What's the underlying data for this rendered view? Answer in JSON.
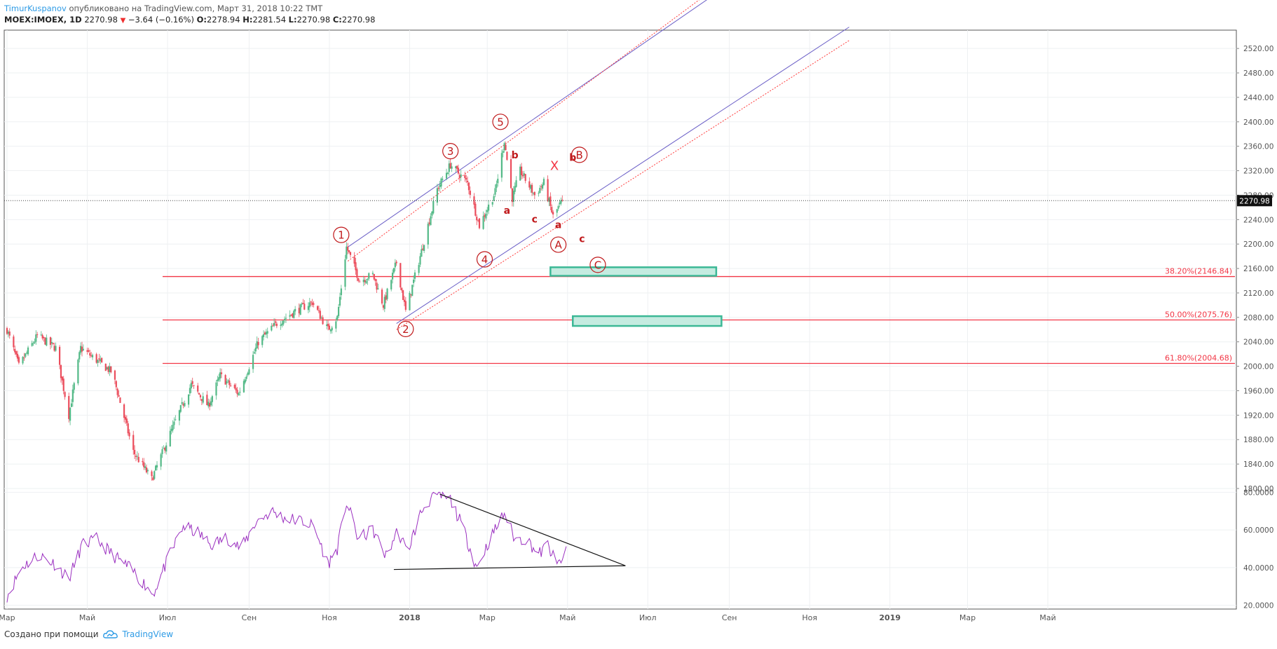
{
  "header": {
    "author": "TimurKuspanov",
    "published": "опубликовано на TradingView.com, Март 31, 2018 10:22 ТМТ",
    "symbol": "MOEX:IMOEX, 1D",
    "last": "2270.98",
    "change_arrow": "▼",
    "change": "−3.64 (−0.16%)",
    "o_label": "O:",
    "o_value": "2278.94",
    "h_label": "H:",
    "h_value": "2281.54",
    "l_label": "L:",
    "l_value": "2270.98",
    "c_label": "C:",
    "c_value": "2270.98"
  },
  "footer": {
    "created_with": "Создано при помощи",
    "brand": "TradingView",
    "brand_icon": "tradingview-cloud-icon"
  },
  "colors": {
    "up": "#53b987",
    "down": "#eb4d5c",
    "channel": "#6b5fc7",
    "channel_outer": "#ff3b3b",
    "fib": "#f23645",
    "rsi": "#9b30c0",
    "zone_fill": "#c5ebe0",
    "zone_stroke": "#3cb896",
    "wave": "#c0191b"
  },
  "chart_data": [
    {
      "type": "candlestick",
      "price_axis": {
        "ticks": [
          2520,
          2480,
          2440,
          2400,
          2360,
          2320,
          2280,
          2240,
          2200,
          2160,
          2120,
          2080,
          2040,
          2000,
          1960,
          1920,
          1880,
          1840,
          1800
        ],
        "labels": [
          "2520.00",
          "2480.00",
          "2440.00",
          "2400.00",
          "2360.00",
          "2320.00",
          "2280.00",
          "2240.00",
          "2200.00",
          "2160.00",
          "2120.00",
          "2080.00",
          "2040.00",
          "2000.00",
          "1960.00",
          "1920.00",
          "1880.00",
          "1840.00",
          "1800.00"
        ],
        "range": [
          1800,
          2550
        ],
        "last_price": 2270.98,
        "last_label": "2270.98"
      },
      "time_axis": {
        "labels": [
          "Мар",
          "Май",
          "Июл",
          "Сен",
          "Ноя",
          "2018",
          "Мар",
          "Май",
          "Июл",
          "Сен",
          "Ноя",
          "2019",
          "Мар",
          "Май"
        ],
        "label_dates": [
          "2017-03-01",
          "2017-05-01",
          "2017-07-01",
          "2017-09-01",
          "2017-11-01",
          "2018-01-01",
          "2018-03-01",
          "2018-05-01",
          "2018-07-01",
          "2018-09-01",
          "2018-11-01",
          "2019-01-01",
          "2019-03-01",
          "2019-05-01"
        ],
        "bold": [
          "2018",
          "2019"
        ]
      },
      "anchors": [
        {
          "d": "2017-03-01",
          "p": 2060
        },
        {
          "d": "2017-03-10",
          "p": 2000
        },
        {
          "d": "2017-03-24",
          "p": 2050
        },
        {
          "d": "2017-04-07",
          "p": 2030
        },
        {
          "d": "2017-04-17",
          "p": 1920
        },
        {
          "d": "2017-04-26",
          "p": 2030
        },
        {
          "d": "2017-05-08",
          "p": 2010
        },
        {
          "d": "2017-05-20",
          "p": 1990
        },
        {
          "d": "2017-06-05",
          "p": 1860
        },
        {
          "d": "2017-06-19",
          "p": 1815
        },
        {
          "d": "2017-07-03",
          "p": 1890
        },
        {
          "d": "2017-07-19",
          "p": 1970
        },
        {
          "d": "2017-08-01",
          "p": 1935
        },
        {
          "d": "2017-08-10",
          "p": 1985
        },
        {
          "d": "2017-08-24",
          "p": 1955
        },
        {
          "d": "2017-09-08",
          "p": 2040
        },
        {
          "d": "2017-09-22",
          "p": 2070
        },
        {
          "d": "2017-10-06",
          "p": 2090
        },
        {
          "d": "2017-10-19",
          "p": 2105
        },
        {
          "d": "2017-10-31",
          "p": 2060
        },
        {
          "d": "2017-11-07",
          "p": 2080
        },
        {
          "d": "2017-11-14",
          "p": 2195
        },
        {
          "d": "2017-11-24",
          "p": 2140
        },
        {
          "d": "2017-12-04",
          "p": 2150
        },
        {
          "d": "2017-12-12",
          "p": 2100
        },
        {
          "d": "2017-12-22",
          "p": 2170
        },
        {
          "d": "2017-12-29",
          "p": 2090
        },
        {
          "d": "2018-01-09",
          "p": 2180
        },
        {
          "d": "2018-01-22",
          "p": 2290
        },
        {
          "d": "2018-02-01",
          "p": 2330
        },
        {
          "d": "2018-02-14",
          "p": 2300
        },
        {
          "d": "2018-02-23",
          "p": 2230
        },
        {
          "d": "2018-03-07",
          "p": 2285
        },
        {
          "d": "2018-03-14",
          "p": 2370
        },
        {
          "d": "2018-03-20",
          "p": 2275
        },
        {
          "d": "2018-03-26",
          "p": 2320
        },
        {
          "d": "2018-04-06",
          "p": 2280
        },
        {
          "d": "2018-04-13",
          "p": 2300
        },
        {
          "d": "2018-04-20",
          "p": 2245
        },
        {
          "d": "2018-04-27",
          "p": 2270.98
        }
      ],
      "fibonacci": [
        {
          "label": "38.20%(2146.84)",
          "value": 2146.84
        },
        {
          "label": "50.00%(2075.76)",
          "value": 2075.76
        },
        {
          "label": "61.80%(2004.68)",
          "value": 2004.68
        }
      ],
      "channels": [
        {
          "style": "solid",
          "from": {
            "d": "2017-11-15",
            "p": 2195
          },
          "to": {
            "d": "2018-12-01",
            "p": 2760
          }
        },
        {
          "style": "solid",
          "from": {
            "d": "2017-12-22",
            "p": 2070
          },
          "to": {
            "d": "2018-12-01",
            "p": 2555
          }
        },
        {
          "style": "dotted",
          "from": {
            "d": "2017-11-15",
            "p": 2172
          },
          "to": {
            "d": "2018-12-01",
            "p": 2782
          }
        },
        {
          "style": "dotted",
          "from": {
            "d": "2017-12-22",
            "p": 2060
          },
          "to": {
            "d": "2018-12-01",
            "p": 2533
          }
        }
      ],
      "zones": [
        {
          "from": {
            "d": "2018-04-18",
            "p": 2162
          },
          "to": {
            "d": "2018-08-22",
            "p": 2148
          }
        },
        {
          "from": {
            "d": "2018-05-05",
            "p": 2082
          },
          "to": {
            "d": "2018-08-26",
            "p": 2066
          }
        }
      ],
      "wave_labels": [
        {
          "text": "1",
          "circle": true,
          "d": "2017-11-10",
          "p": 2215
        },
        {
          "text": "2",
          "circle": true,
          "d": "2017-12-29",
          "p": 2061
        },
        {
          "text": "3",
          "circle": true,
          "d": "2018-02-01",
          "p": 2352
        },
        {
          "text": "4",
          "circle": true,
          "d": "2018-02-27",
          "p": 2175
        },
        {
          "text": "5",
          "circle": true,
          "d": "2018-03-11",
          "p": 2400
        },
        {
          "text": "A",
          "circle": true,
          "d": "2018-04-24",
          "p": 2199
        },
        {
          "text": "B",
          "circle": true,
          "d": "2018-05-10",
          "p": 2346
        },
        {
          "text": "C",
          "circle": true,
          "d": "2018-05-24",
          "p": 2166
        },
        {
          "text": "b",
          "circle": false,
          "d": "2018-03-22",
          "p": 2346
        },
        {
          "text": "a",
          "circle": false,
          "d": "2018-03-16",
          "p": 2255
        },
        {
          "text": "c",
          "circle": false,
          "d": "2018-04-06",
          "p": 2241
        },
        {
          "text": "X",
          "circle": false,
          "d": "2018-04-21",
          "p": 2327
        },
        {
          "text": "a",
          "circle": false,
          "d": "2018-04-24",
          "p": 2232
        },
        {
          "text": "b",
          "circle": false,
          "d": "2018-05-05",
          "p": 2342
        },
        {
          "text": "c",
          "circle": false,
          "d": "2018-05-12",
          "p": 2209
        }
      ]
    },
    {
      "type": "line",
      "indicator": "RSI",
      "value_axis": {
        "ticks": [
          80,
          60,
          40,
          20
        ],
        "labels": [
          "80.0000",
          "60.0000",
          "40.0000",
          "20.0000"
        ],
        "range": [
          18,
          82
        ]
      },
      "anchors": [
        {
          "d": "2017-03-01",
          "p": 25
        },
        {
          "d": "2017-03-12",
          "p": 40
        },
        {
          "d": "2017-03-25",
          "p": 47
        },
        {
          "d": "2017-04-06",
          "p": 42
        },
        {
          "d": "2017-04-17",
          "p": 34
        },
        {
          "d": "2017-04-27",
          "p": 52
        },
        {
          "d": "2017-05-08",
          "p": 55
        },
        {
          "d": "2017-05-20",
          "p": 47
        },
        {
          "d": "2017-06-05",
          "p": 38
        },
        {
          "d": "2017-06-20",
          "p": 26
        },
        {
          "d": "2017-07-01",
          "p": 44
        },
        {
          "d": "2017-07-13",
          "p": 62
        },
        {
          "d": "2017-07-25",
          "p": 58
        },
        {
          "d": "2017-08-03",
          "p": 52
        },
        {
          "d": "2017-08-15",
          "p": 56
        },
        {
          "d": "2017-08-26",
          "p": 50
        },
        {
          "d": "2017-09-06",
          "p": 64
        },
        {
          "d": "2017-09-18",
          "p": 70
        },
        {
          "d": "2017-09-29",
          "p": 66
        },
        {
          "d": "2017-10-10",
          "p": 65
        },
        {
          "d": "2017-10-20",
          "p": 62
        },
        {
          "d": "2017-10-31",
          "p": 42
        },
        {
          "d": "2017-11-07",
          "p": 50
        },
        {
          "d": "2017-11-14",
          "p": 75
        },
        {
          "d": "2017-11-23",
          "p": 55
        },
        {
          "d": "2017-12-04",
          "p": 60
        },
        {
          "d": "2017-12-14",
          "p": 46
        },
        {
          "d": "2017-12-23",
          "p": 60
        },
        {
          "d": "2017-12-30",
          "p": 48
        },
        {
          "d": "2018-01-10",
          "p": 70
        },
        {
          "d": "2018-01-20",
          "p": 79
        },
        {
          "d": "2018-02-01",
          "p": 76
        },
        {
          "d": "2018-02-10",
          "p": 62
        },
        {
          "d": "2018-02-21",
          "p": 40
        },
        {
          "d": "2018-03-03",
          "p": 55
        },
        {
          "d": "2018-03-14",
          "p": 69
        },
        {
          "d": "2018-03-22",
          "p": 55
        },
        {
          "d": "2018-03-31",
          "p": 55
        },
        {
          "d": "2018-04-09",
          "p": 47
        },
        {
          "d": "2018-04-16",
          "p": 52
        },
        {
          "d": "2018-04-23",
          "p": 41
        },
        {
          "d": "2018-04-30",
          "p": 48
        }
      ],
      "triangle": [
        {
          "from": {
            "d": "2018-01-24",
            "p": 79
          },
          "to": {
            "d": "2018-06-14",
            "p": 41
          }
        },
        {
          "from": {
            "d": "2017-12-20",
            "p": 39
          },
          "to": {
            "d": "2018-06-14",
            "p": 41
          }
        }
      ]
    }
  ]
}
